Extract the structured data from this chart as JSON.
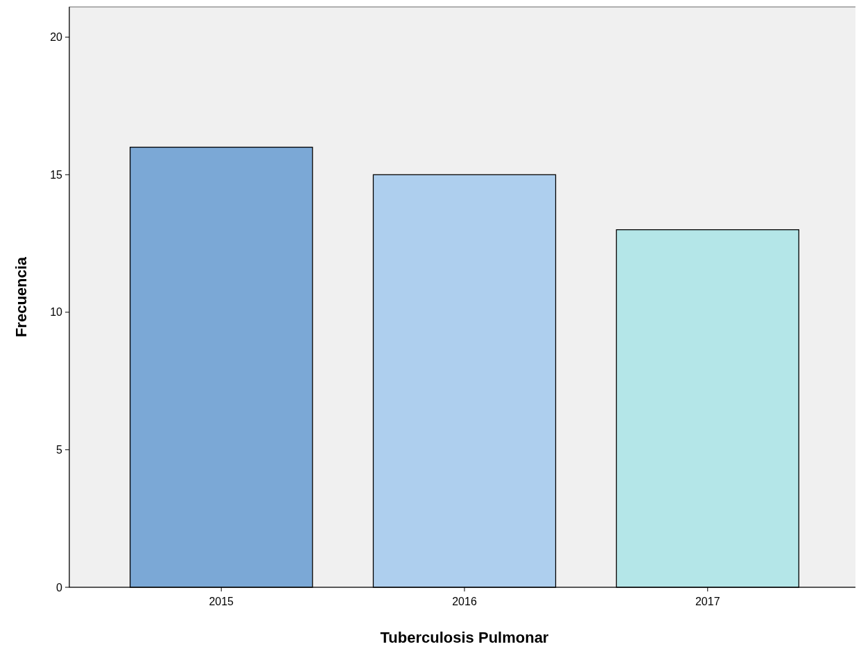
{
  "chart_data": {
    "type": "bar",
    "xlabel": "Tuberculosis Pulmonar",
    "ylabel": "Frecuencia",
    "categories": [
      "2015",
      "2016",
      "2017"
    ],
    "values": [
      16,
      15,
      13
    ],
    "colors": [
      "#7ba8d6",
      "#aecfee",
      "#b4e6e8"
    ],
    "ylim": [
      0,
      21.1
    ],
    "yticks": [
      0,
      5,
      10,
      15,
      20
    ],
    "grid": false
  }
}
